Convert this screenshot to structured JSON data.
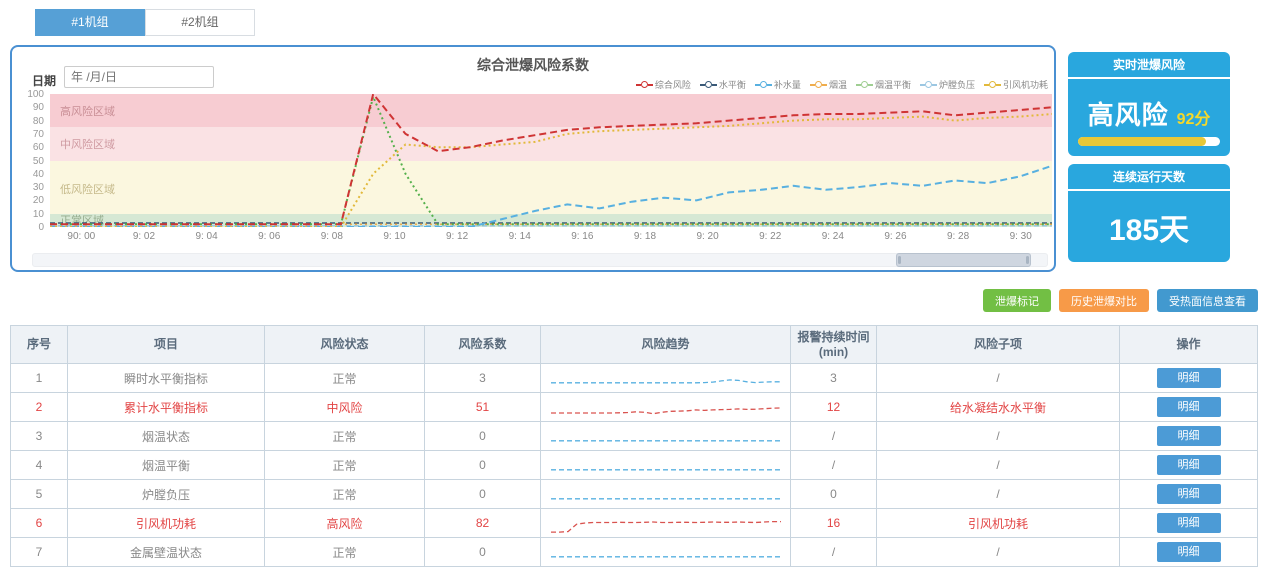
{
  "tabs": [
    {
      "label": "#1机组",
      "active": true
    },
    {
      "label": "#2机组",
      "active": false
    }
  ],
  "chart_panel": {
    "date_label": "日期",
    "date_placeholder": "年 /月/日"
  },
  "chart_data": {
    "type": "line",
    "title": "综合泄爆风险系数",
    "ylim": [
      0,
      100
    ],
    "y_ticks": [
      0,
      10,
      20,
      30,
      40,
      50,
      60,
      70,
      80,
      90,
      100
    ],
    "x_ticks": [
      "90: 00",
      "9: 02",
      "9: 04",
      "9: 06",
      "9: 08",
      "9: 10",
      "9: 12",
      "9: 14",
      "9: 16",
      "9: 18",
      "9: 20",
      "9: 22",
      "9: 24",
      "9: 26",
      "9: 28",
      "9: 30"
    ],
    "zones": [
      {
        "label": "高风险区域",
        "from": 75,
        "to": 100,
        "color": "#f7ccd2",
        "label_color": "#c98f96",
        "label_y": 88
      },
      {
        "label": "中风险区域",
        "from": 50,
        "to": 75,
        "color": "#fae2e4",
        "label_color": "#cf9aa1",
        "label_y": 63
      },
      {
        "label": "低风险区域",
        "from": 10,
        "to": 50,
        "color": "#fbf7df",
        "label_color": "#c5b98a",
        "label_y": 29
      },
      {
        "label": "正常区域",
        "from": 0,
        "to": 10,
        "color": "#d6e8d4",
        "label_color": "#93ab8c",
        "label_y": 6
      }
    ],
    "legend": [
      {
        "name": "综合风险",
        "color": "#cf3434"
      },
      {
        "name": "水平衡",
        "color": "#3a5a78"
      },
      {
        "name": "补水量",
        "color": "#58b0e0"
      },
      {
        "name": "烟温",
        "color": "#efad4d"
      },
      {
        "name": "烟温平衡",
        "color": "#9fce92"
      },
      {
        "name": "炉膛负压",
        "color": "#9cc7e2"
      },
      {
        "name": "引风机功耗",
        "color": "#e2b93b"
      }
    ],
    "series": [
      {
        "name": "水平衡",
        "color": "#3a5a78",
        "dash": "5,3",
        "width": 1.5,
        "values": [
          3,
          3,
          3,
          3,
          3,
          3,
          3,
          3,
          3,
          3,
          3,
          3,
          3,
          3,
          3,
          3,
          3,
          3,
          3,
          3,
          3,
          3,
          3,
          3,
          3,
          3,
          3,
          3,
          3,
          3,
          3,
          3
        ]
      },
      {
        "name": "烟温",
        "color": "#efad4d",
        "dash": "2,3",
        "width": 1.5,
        "values": [
          2,
          2,
          2,
          2,
          2,
          2,
          2,
          2,
          2,
          2,
          2,
          2,
          2,
          2,
          2,
          2,
          2,
          2,
          2,
          2,
          2,
          2,
          2,
          2,
          2,
          2,
          2,
          2,
          2,
          2,
          2,
          2
        ]
      },
      {
        "name": "炉膛负压",
        "color": "#9cc7e2",
        "dash": "5,3",
        "width": 1.5,
        "values": [
          1,
          1,
          1,
          1,
          1,
          1,
          1,
          1,
          1,
          1,
          1,
          1,
          1,
          1,
          1,
          1,
          1,
          1,
          1,
          1,
          1,
          1,
          1,
          1,
          1,
          1,
          1,
          1,
          1,
          1,
          1,
          1
        ]
      },
      {
        "name": "烟温平衡",
        "color": "#55b04c",
        "dash": "2,3",
        "width": 2,
        "values": [
          2,
          2,
          2,
          2,
          2,
          2,
          2,
          2,
          2,
          2,
          98,
          40,
          2,
          2,
          2,
          2,
          2,
          2,
          2,
          2,
          2,
          2,
          2,
          2,
          2,
          2,
          2,
          2,
          2,
          2,
          2,
          2
        ]
      },
      {
        "name": "补水量",
        "color": "#58b0e0",
        "dash": "7,4",
        "width": 2,
        "values": [
          0,
          0,
          0,
          0,
          0,
          0,
          0,
          0,
          0,
          0,
          0,
          0,
          0,
          0,
          6,
          12,
          17,
          14,
          19,
          22,
          20,
          26,
          28,
          31,
          28,
          30,
          33,
          31,
          35,
          33,
          38,
          46
        ]
      },
      {
        "name": "引风机功耗",
        "color": "#e2b93b",
        "dash": "2,3",
        "width": 2,
        "values": [
          0,
          0,
          0,
          0,
          0,
          0,
          0,
          0,
          0,
          0,
          40,
          62,
          60,
          60,
          62,
          64,
          70,
          72,
          73,
          74,
          75,
          76,
          78,
          80,
          81,
          81,
          82,
          83,
          80,
          82,
          83,
          85
        ]
      },
      {
        "name": "综合风险",
        "color": "#cf3434",
        "dash": "7,4",
        "width": 2,
        "values": [
          2,
          2,
          2,
          2,
          2,
          2,
          2,
          2,
          2,
          2,
          100,
          70,
          57,
          60,
          65,
          69,
          73,
          75,
          76,
          77,
          78,
          80,
          82,
          84,
          85,
          85,
          86,
          87,
          84,
          86,
          88,
          90
        ]
      }
    ]
  },
  "right_panel": {
    "realtime": {
      "header": "实时泄爆风险",
      "level": "高风险",
      "score": "92分",
      "progress": 90
    },
    "days": {
      "header": "连续运行天数",
      "value": "185天"
    }
  },
  "action_buttons": [
    {
      "label": "泄爆标记",
      "color": "#72bf44"
    },
    {
      "label": "历史泄爆对比",
      "color": "#f79a48"
    },
    {
      "label": "受热面信息查看",
      "color": "#4299cf"
    }
  ],
  "table": {
    "headers": [
      "序号",
      "项目",
      "风险状态",
      "风险系数",
      "风险趋势",
      "报警持续时间\n(min)",
      "风险子项",
      "操作"
    ],
    "detail_label": "明细",
    "rows": [
      {
        "no": "1",
        "item": "瞬时水平衡指标",
        "status": "正常",
        "coef": "3",
        "alarm": "3",
        "sub": "/",
        "alert": false,
        "trend": {
          "color": "#58b0e0",
          "values": [
            30,
            30,
            30,
            30,
            30,
            30,
            30,
            30,
            30,
            30,
            30,
            30,
            30,
            30,
            30,
            30,
            30,
            30,
            31,
            33,
            38,
            42,
            40,
            34,
            31,
            33,
            34,
            34
          ]
        }
      },
      {
        "no": "2",
        "item": "累计水平衡指标",
        "status": "中风险",
        "coef": "51",
        "alarm": "12",
        "sub": "给水凝结水水平衡",
        "alert": true,
        "trend": {
          "color": "#d9534f",
          "values": [
            25,
            25,
            25,
            25,
            25,
            25,
            25,
            25,
            26,
            27,
            30,
            28,
            22,
            28,
            32,
            33,
            34,
            38,
            36,
            38,
            39,
            40,
            42,
            40,
            41,
            43,
            45,
            46
          ]
        }
      },
      {
        "no": "3",
        "item": "烟温状态",
        "status": "正常",
        "coef": "0",
        "alarm": "/",
        "sub": "/",
        "alert": false,
        "trend": {
          "color": "#58b0e0",
          "values": [
            30,
            30,
            30,
            30,
            30,
            30,
            30,
            30,
            30,
            30,
            30,
            30,
            30,
            30,
            30,
            30,
            30,
            30,
            30,
            30,
            30,
            30,
            30,
            30,
            30,
            30,
            30,
            30
          ]
        }
      },
      {
        "no": "4",
        "item": "烟温平衡",
        "status": "正常",
        "coef": "0",
        "alarm": "/",
        "sub": "/",
        "alert": false,
        "trend": {
          "color": "#58b0e0",
          "values": [
            30,
            30,
            30,
            30,
            30,
            30,
            30,
            30,
            30,
            30,
            30,
            30,
            30,
            30,
            30,
            30,
            30,
            30,
            30,
            30,
            30,
            30,
            30,
            30,
            30,
            30,
            30,
            30
          ]
        }
      },
      {
        "no": "5",
        "item": "炉膛负压",
        "status": "正常",
        "coef": "0",
        "alarm": "0",
        "sub": "/",
        "alert": false,
        "trend": {
          "color": "#58b0e0",
          "values": [
            30,
            30,
            30,
            30,
            30,
            30,
            30,
            30,
            30,
            30,
            30,
            30,
            30,
            30,
            30,
            30,
            30,
            30,
            30,
            30,
            30,
            30,
            30,
            30,
            30,
            30,
            30,
            30
          ]
        }
      },
      {
        "no": "6",
        "item": "引风机功耗",
        "status": "高风险",
        "coef": "82",
        "alarm": "16",
        "sub": "引风机功耗",
        "alert": true,
        "trend": {
          "color": "#d9534f",
          "values": [
            12,
            12,
            14,
            45,
            50,
            52,
            52,
            52,
            53,
            52,
            52,
            53,
            54,
            52,
            52,
            53,
            53,
            52,
            53,
            54,
            53,
            53,
            54,
            53,
            52,
            54,
            56,
            56
          ]
        }
      },
      {
        "no": "7",
        "item": "金属壁温状态",
        "status": "正常",
        "coef": "0",
        "alarm": "/",
        "sub": "/",
        "alert": false,
        "trend": {
          "color": "#58b0e0",
          "values": [
            30,
            30,
            30,
            30,
            30,
            30,
            30,
            30,
            30,
            30,
            30,
            30,
            30,
            30,
            30,
            30,
            30,
            30,
            30,
            30,
            30,
            30,
            30,
            30,
            30,
            30,
            30,
            30
          ]
        }
      }
    ]
  }
}
